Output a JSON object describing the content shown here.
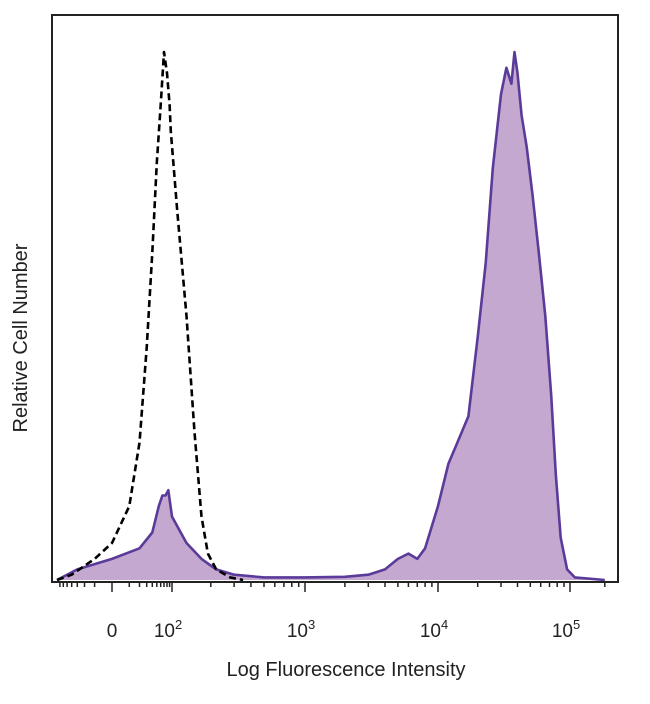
{
  "chart_data": {
    "type": "area",
    "title": "",
    "xlabel": "Log Fluorescence Intensity",
    "ylabel": "Relative Cell Number",
    "x_scale": "biexponential (logicle)",
    "x_ticks": [
      {
        "value": 0,
        "label": "0",
        "exp": ""
      },
      {
        "value": 100,
        "label": "10",
        "exp": "2"
      },
      {
        "value": 1000,
        "label": "10",
        "exp": "3"
      },
      {
        "value": 10000,
        "label": "10",
        "exp": "4"
      },
      {
        "value": 100000,
        "label": "10",
        "exp": "5"
      }
    ],
    "ylim": [
      0,
      100
    ],
    "y_ticks_shown": false,
    "grid": false,
    "legend": "none",
    "series": [
      {
        "style": "dashed black line, unfilled",
        "color": "#000000",
        "fill": "none",
        "points": [
          [
            -80,
            0
          ],
          [
            -40,
            1
          ],
          [
            -10,
            4
          ],
          [
            0,
            7
          ],
          [
            10,
            14
          ],
          [
            20,
            26
          ],
          [
            30,
            44
          ],
          [
            40,
            62
          ],
          [
            50,
            79
          ],
          [
            60,
            90
          ],
          [
            70,
            100
          ],
          [
            80,
            96
          ],
          [
            90,
            90
          ],
          [
            95,
            85
          ],
          [
            110,
            70
          ],
          [
            130,
            50
          ],
          [
            150,
            28
          ],
          [
            170,
            12
          ],
          [
            190,
            5
          ],
          [
            220,
            2
          ],
          [
            280,
            0.5
          ],
          [
            350,
            0
          ]
        ]
      },
      {
        "style": "purple line, filled",
        "color": "#5a3b9a",
        "fill": "#c5a8cf",
        "points": [
          [
            -80,
            0
          ],
          [
            -30,
            2
          ],
          [
            0,
            4
          ],
          [
            20,
            6
          ],
          [
            40,
            9
          ],
          [
            55,
            14
          ],
          [
            65,
            16
          ],
          [
            75,
            16
          ],
          [
            85,
            17
          ],
          [
            100,
            12
          ],
          [
            130,
            7
          ],
          [
            170,
            4
          ],
          [
            220,
            2
          ],
          [
            300,
            1
          ],
          [
            500,
            0.5
          ],
          [
            1000,
            0.5
          ],
          [
            2000,
            0.6
          ],
          [
            3000,
            1
          ],
          [
            4000,
            2
          ],
          [
            5000,
            4
          ],
          [
            6000,
            5
          ],
          [
            7000,
            4
          ],
          [
            8000,
            6
          ],
          [
            10000,
            14
          ],
          [
            12000,
            22
          ],
          [
            14000,
            26
          ],
          [
            17000,
            31
          ],
          [
            20000,
            46
          ],
          [
            23000,
            60
          ],
          [
            26000,
            78
          ],
          [
            30000,
            92
          ],
          [
            33000,
            97
          ],
          [
            36000,
            94
          ],
          [
            38000,
            100
          ],
          [
            40000,
            96
          ],
          [
            43000,
            88
          ],
          [
            47000,
            82
          ],
          [
            52000,
            73
          ],
          [
            58000,
            62
          ],
          [
            65000,
            50
          ],
          [
            72000,
            35
          ],
          [
            78000,
            20
          ],
          [
            85000,
            8
          ],
          [
            95000,
            2
          ],
          [
            110000,
            0.5
          ],
          [
            200000,
            0
          ]
        ]
      }
    ]
  }
}
